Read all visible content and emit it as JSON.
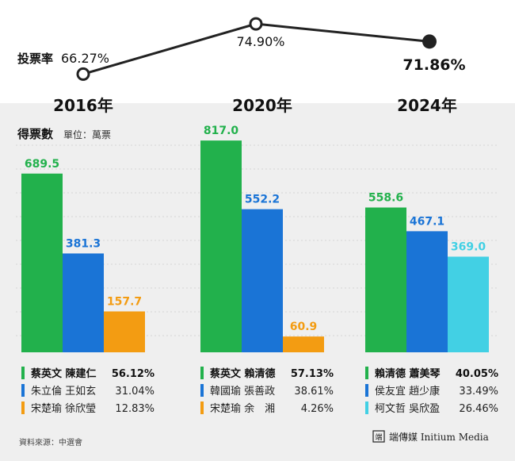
{
  "colors": {
    "green": "#22b14c",
    "blue": "#1a74d6",
    "orange": "#f39c12",
    "cyan": "#42d0e4",
    "line": "#222222",
    "panel": "#efefef"
  },
  "turnout": {
    "label": "投票率",
    "points": [
      {
        "year": "2016年",
        "value": 66.27,
        "label": "66.27%",
        "marker": "hollow"
      },
      {
        "year": "2020年",
        "value": 74.9,
        "label": "74.90%",
        "marker": "hollow"
      },
      {
        "year": "2024年",
        "value": 71.86,
        "label": "71.86%",
        "marker": "filled"
      }
    ]
  },
  "votes": {
    "title": "得票數",
    "unit": "單位：萬票"
  },
  "chart_data": {
    "type": "bar",
    "ylim": [
      0,
      900
    ],
    "grid": true,
    "elections": [
      {
        "year": "2016年",
        "candidates": [
          {
            "name": "蔡英文 陳建仁",
            "votes": 689.5,
            "votes_label": "689.5",
            "share": "56.12%",
            "color": "green",
            "winner": true
          },
          {
            "name": "朱立倫 王如玄",
            "votes": 381.3,
            "votes_label": "381.3",
            "share": "31.04%",
            "color": "blue",
            "winner": false
          },
          {
            "name": "宋楚瑜 徐欣瑩",
            "votes": 157.7,
            "votes_label": "157.7",
            "share": "12.83%",
            "color": "orange",
            "winner": false
          }
        ]
      },
      {
        "year": "2020年",
        "candidates": [
          {
            "name": "蔡英文 賴清德",
            "votes": 817.0,
            "votes_label": "817.0",
            "share": "57.13%",
            "color": "green",
            "winner": true
          },
          {
            "name": "韓國瑜 張善政",
            "votes": 552.2,
            "votes_label": "552.2",
            "share": "38.61%",
            "color": "blue",
            "winner": false
          },
          {
            "name": "宋楚瑜 余　湘",
            "votes": 60.9,
            "votes_label": "60.9",
            "share": "4.26%",
            "color": "orange",
            "winner": false
          }
        ]
      },
      {
        "year": "2024年",
        "candidates": [
          {
            "name": "賴清德 蕭美琴",
            "votes": 558.6,
            "votes_label": "558.6",
            "share": "40.05%",
            "color": "green",
            "winner": true
          },
          {
            "name": "侯友宜 趙少康",
            "votes": 467.1,
            "votes_label": "467.1",
            "share": "33.49%",
            "color": "blue",
            "winner": false
          },
          {
            "name": "柯文哲 吳欣盈",
            "votes": 369.0,
            "votes_label": "369.0",
            "share": "26.46%",
            "color": "cyan",
            "winner": false
          }
        ]
      }
    ]
  },
  "footer": {
    "source": "資料來源：中選會",
    "brand": "端傳媒 Initium Media",
    "logo_text": "端"
  }
}
